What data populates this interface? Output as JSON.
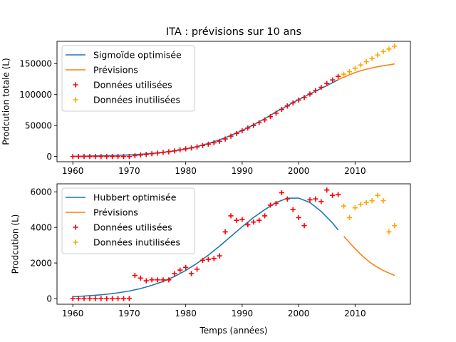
{
  "chart_data": [
    {
      "type": "line",
      "title": "ITA : prévisions sur 10 ans",
      "xlabel": "",
      "ylabel": "Prodcution totale (L)",
      "xlim": [
        1957.2,
        2019.8
      ],
      "ylim": [
        -8500,
        186000
      ],
      "x_ticks": [
        1960,
        1970,
        1980,
        1990,
        2000,
        2010
      ],
      "y_ticks": [
        0,
        50000,
        100000,
        150000
      ],
      "y_tick_labels": [
        "0",
        "50000",
        "100000",
        "150000"
      ],
      "legend_position": "upper left",
      "series": [
        {
          "name": "Sigmoïde optimisée",
          "kind": "line",
          "color": "#1f77b4",
          "x": [
            1960,
            1962,
            1964,
            1966,
            1968,
            1970,
            1972,
            1974,
            1976,
            1978,
            1980,
            1982,
            1984,
            1986,
            1988,
            1990,
            1992,
            1994,
            1996,
            1998,
            2000,
            2002,
            2004,
            2006,
            2007
          ],
          "y": [
            300,
            500,
            900,
            1300,
            1900,
            2600,
            3600,
            5000,
            6800,
            9000,
            12000,
            16000,
            21000,
            27000,
            34000,
            42000,
            51000,
            61000,
            72000,
            82000,
            92000,
            101000,
            110000,
            119000,
            124000
          ]
        },
        {
          "name": "Prévisions",
          "kind": "line",
          "color": "#ff7f0e",
          "x": [
            2007,
            2008,
            2009,
            2010,
            2011,
            2012,
            2013,
            2014,
            2015,
            2016,
            2017
          ],
          "y": [
            124000,
            128000,
            132000,
            135500,
            138500,
            141000,
            143000,
            145000,
            146500,
            148000,
            149500
          ]
        },
        {
          "name": "Données utilisées",
          "kind": "scatter",
          "marker": "+",
          "color": "#ff0000",
          "x": [
            1960,
            1961,
            1962,
            1963,
            1964,
            1965,
            1966,
            1967,
            1968,
            1969,
            1970,
            1971,
            1972,
            1973,
            1974,
            1975,
            1976,
            1977,
            1978,
            1979,
            1980,
            1981,
            1982,
            1983,
            1984,
            1985,
            1986,
            1987,
            1988,
            1989,
            1990,
            1991,
            1992,
            1993,
            1994,
            1995,
            1996,
            1997,
            1998,
            1999,
            2000,
            2001,
            2002,
            2003,
            2004,
            2005,
            2006,
            2007
          ],
          "y": [
            0,
            0,
            0,
            0,
            0,
            0,
            0,
            0,
            0,
            0,
            0,
            1300,
            2400,
            3400,
            4400,
            5500,
            6600,
            7600,
            9000,
            10700,
            12400,
            13800,
            15500,
            17700,
            19900,
            22100,
            24500,
            28200,
            32800,
            37200,
            41700,
            45900,
            50100,
            54500,
            59100,
            64400,
            70000,
            76000,
            81600,
            86600,
            91100,
            95200,
            100800,
            106300,
            111700,
            117800,
            123600,
            129400
          ]
        },
        {
          "name": "Données inutilisées",
          "kind": "scatter",
          "marker": "+",
          "color": "#ffa500",
          "x": [
            2008,
            2009,
            2010,
            2011,
            2012,
            2013,
            2014,
            2015,
            2016,
            2017
          ],
          "y": [
            133000,
            137000,
            142500,
            147800,
            153100,
            158300,
            164000,
            169500,
            173500,
            178000
          ]
        }
      ]
    },
    {
      "type": "line",
      "title": "",
      "xlabel": "Temps (années)",
      "ylabel": "Prodcution (L)",
      "xlim": [
        1957.2,
        2019.8
      ],
      "ylim": [
        -320,
        6450
      ],
      "x_ticks": [
        1960,
        1970,
        1980,
        1990,
        2000,
        2010
      ],
      "y_ticks": [
        0,
        2000,
        4000,
        6000
      ],
      "y_tick_labels": [
        "0",
        "2000",
        "4000",
        "6000"
      ],
      "legend_position": "upper left",
      "series": [
        {
          "name": "Hubbert optimisée",
          "kind": "line",
          "color": "#1f77b4",
          "x": [
            1960,
            1962,
            1964,
            1966,
            1968,
            1970,
            1972,
            1974,
            1976,
            1978,
            1980,
            1982,
            1984,
            1986,
            1988,
            1990,
            1992,
            1994,
            1996,
            1998,
            2000,
            2002,
            2004,
            2006,
            2007
          ],
          "y": [
            100,
            140,
            185,
            240,
            320,
            420,
            560,
            740,
            960,
            1240,
            1580,
            1980,
            2440,
            2950,
            3490,
            4040,
            4550,
            5000,
            5400,
            5640,
            5650,
            5400,
            4900,
            4250,
            3850
          ]
        },
        {
          "name": "Prévisions",
          "kind": "line",
          "color": "#ff7f0e",
          "x": [
            2008,
            2009,
            2010,
            2011,
            2012,
            2013,
            2014,
            2015,
            2016,
            2017
          ],
          "y": [
            3500,
            3150,
            2800,
            2480,
            2200,
            1950,
            1750,
            1580,
            1430,
            1300
          ]
        },
        {
          "name": "Données utilisées",
          "kind": "scatter",
          "marker": "+",
          "color": "#ff0000",
          "x": [
            1960,
            1961,
            1962,
            1963,
            1964,
            1965,
            1966,
            1967,
            1968,
            1969,
            1970,
            1971,
            1972,
            1973,
            1974,
            1975,
            1976,
            1977,
            1978,
            1979,
            1980,
            1981,
            1982,
            1983,
            1984,
            1985,
            1986,
            1987,
            1988,
            1989,
            1990,
            1991,
            1992,
            1993,
            1994,
            1995,
            1996,
            1997,
            1998,
            1999,
            2000,
            2001,
            2002,
            2003,
            2004,
            2005,
            2006,
            2007
          ],
          "y": [
            0,
            0,
            0,
            0,
            0,
            0,
            0,
            0,
            0,
            0,
            0,
            1300,
            1150,
            1000,
            1050,
            1050,
            1050,
            1050,
            1400,
            1600,
            1750,
            1400,
            1650,
            2150,
            2200,
            2250,
            2400,
            3750,
            4650,
            4400,
            4450,
            4150,
            4300,
            4400,
            4650,
            5250,
            5350,
            5950,
            5600,
            5000,
            4550,
            4100,
            5550,
            5600,
            5450,
            6100,
            5800,
            5850
          ]
        },
        {
          "name": "Données inutilisées",
          "kind": "scatter",
          "marker": "+",
          "color": "#ffa500",
          "x": [
            2008,
            2009,
            2010,
            2011,
            2012,
            2013,
            2014,
            2015,
            2016,
            2017
          ],
          "y": [
            5200,
            4550,
            5100,
            5300,
            5400,
            5500,
            5800,
            5500,
            3750,
            4100
          ]
        }
      ]
    }
  ]
}
